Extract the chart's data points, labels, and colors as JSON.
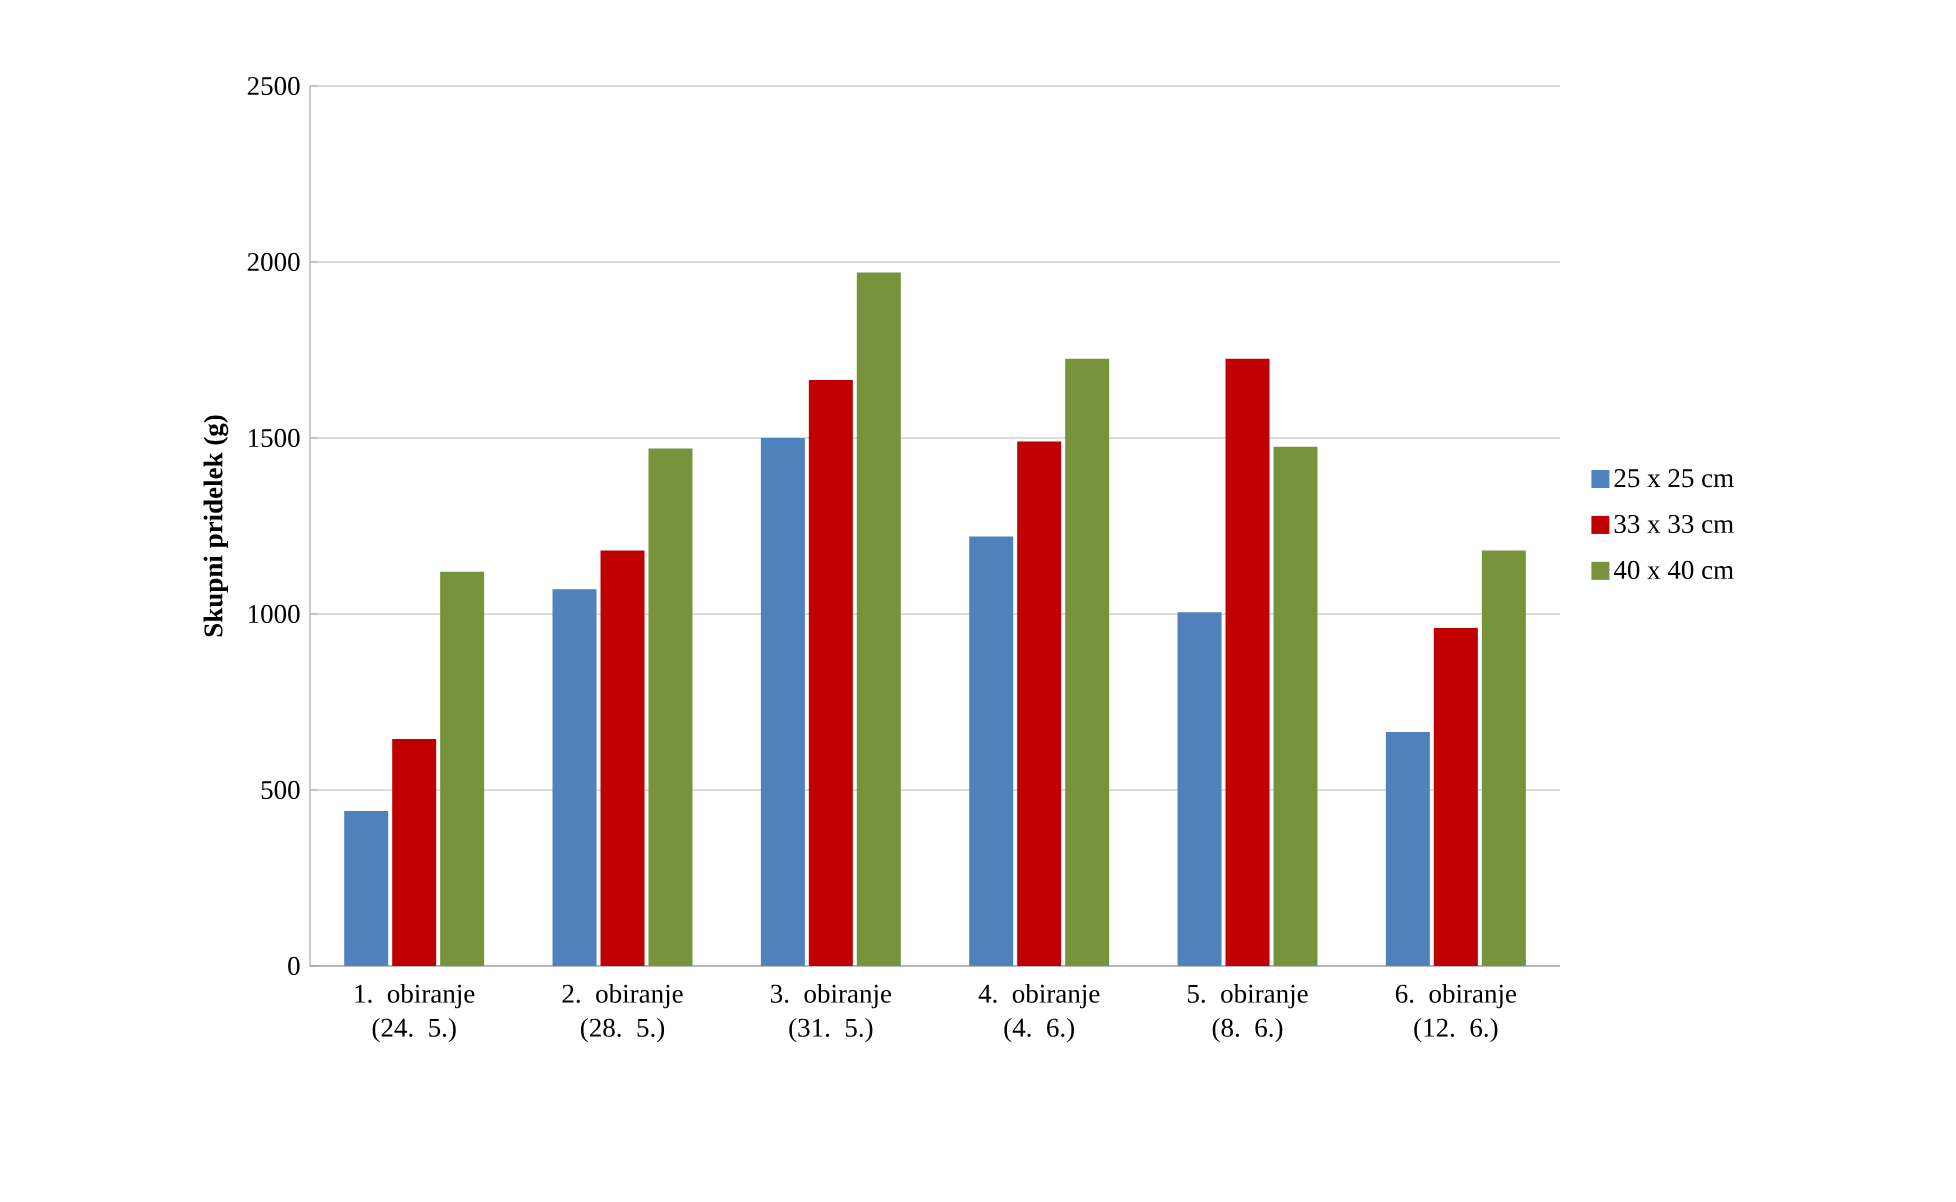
{
  "chart_data": {
    "type": "bar",
    "ylabel": "**Skupni pridelek (g)**",
    "categories": [
      "1. obiranje (24. 5.)",
      "2. obiranje (28. 5.)",
      "3. obiranje (31. 5.)",
      "4. obiranje (4. 6.)",
      "5. obiranje (8. 6.)",
      "6. obiranje (12. 6.)"
    ],
    "series": [
      {
        "name": "25 x 25 cm",
        "color": "#4f81bd",
        "values": [
          440,
          1070,
          1500,
          1220,
          1005,
          665
        ]
      },
      {
        "name": "33 x 33 cm",
        "color": "#c00000",
        "values": [
          645,
          1180,
          1665,
          1490,
          1725,
          960
        ]
      },
      {
        "name": "40 x 40 cm",
        "color": "#77933c",
        "values": [
          1120,
          1470,
          1970,
          1725,
          1475,
          1180
        ]
      }
    ],
    "ylim": [
      0,
      2500
    ],
    "yticks": [
      0,
      500,
      1000,
      1500,
      2000,
      2500
    ],
    "grid": "y",
    "legend": "right"
  }
}
